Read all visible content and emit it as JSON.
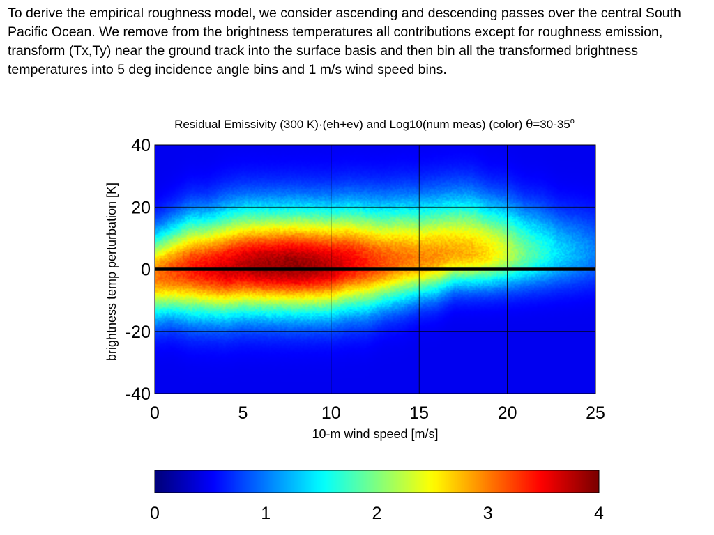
{
  "paragraph": "To derive the empirical roughness model, we consider ascending and descending passes over the central South Pacific Ocean. We remove from the brightness temperatures all contributions except for roughness emission, transform  (Tx,Ty) near the ground track into the surface basis and then bin all the transformed brightness temperatures into 5 deg incidence angle bins and 1 m/s wind speed bins.",
  "chart_data": {
    "type": "heatmap",
    "title_main": "Residual Emissivity (300 K)·(eh+ev) and Log10(num meas) (color) ",
    "title_theta": "θ",
    "title_range": "=30-35",
    "title_sup": "o",
    "xlabel": "10-m wind speed [m/s]",
    "ylabel": "brightness temp perturbation [K]",
    "xlim": [
      0,
      25
    ],
    "ylim": [
      -40,
      40
    ],
    "xticks": [
      "0",
      "5",
      "10",
      "15",
      "20",
      "25"
    ],
    "yticks": [
      "40",
      "20",
      "0",
      "-20",
      "-40"
    ],
    "grid": true,
    "reference_line_y": 0,
    "colorbar": {
      "colormap": "jet",
      "range": [
        0,
        4
      ],
      "ticks": [
        "0",
        "1",
        "2",
        "3",
        "4"
      ]
    },
    "density_profile": {
      "x": [
        0,
        1,
        2,
        3,
        4,
        5,
        6,
        7,
        8,
        9,
        10,
        11,
        12,
        13,
        14,
        15,
        16,
        17,
        18,
        19,
        20,
        21,
        22,
        23,
        24,
        25
      ],
      "peak_log10_count": [
        2.8,
        3.0,
        3.2,
        3.35,
        3.5,
        3.6,
        3.7,
        3.75,
        3.8,
        3.7,
        3.6,
        3.4,
        3.2,
        3.0,
        2.85,
        2.75,
        2.7,
        2.6,
        2.55,
        2.35,
        2.0,
        1.6,
        1.3,
        1.0,
        0.8,
        0.6
      ],
      "center_k": [
        -2,
        -1,
        0,
        0,
        0,
        1,
        1,
        1,
        1,
        1,
        1,
        2,
        2,
        2,
        3,
        3,
        4,
        5,
        5,
        5,
        5,
        5,
        5,
        5,
        5,
        5
      ],
      "width_upper_k": [
        9,
        10,
        11,
        11,
        12,
        12,
        12,
        12,
        12,
        12,
        12,
        12,
        12,
        12,
        12,
        12,
        12,
        12,
        12,
        11,
        11,
        10,
        10,
        9,
        9,
        9
      ],
      "width_lower_k": [
        9,
        9,
        10,
        10,
        10,
        10,
        10,
        10,
        10,
        10,
        10,
        10,
        10,
        9,
        9,
        8,
        8,
        7,
        7,
        7,
        7,
        7,
        7,
        7,
        7,
        7
      ]
    }
  }
}
